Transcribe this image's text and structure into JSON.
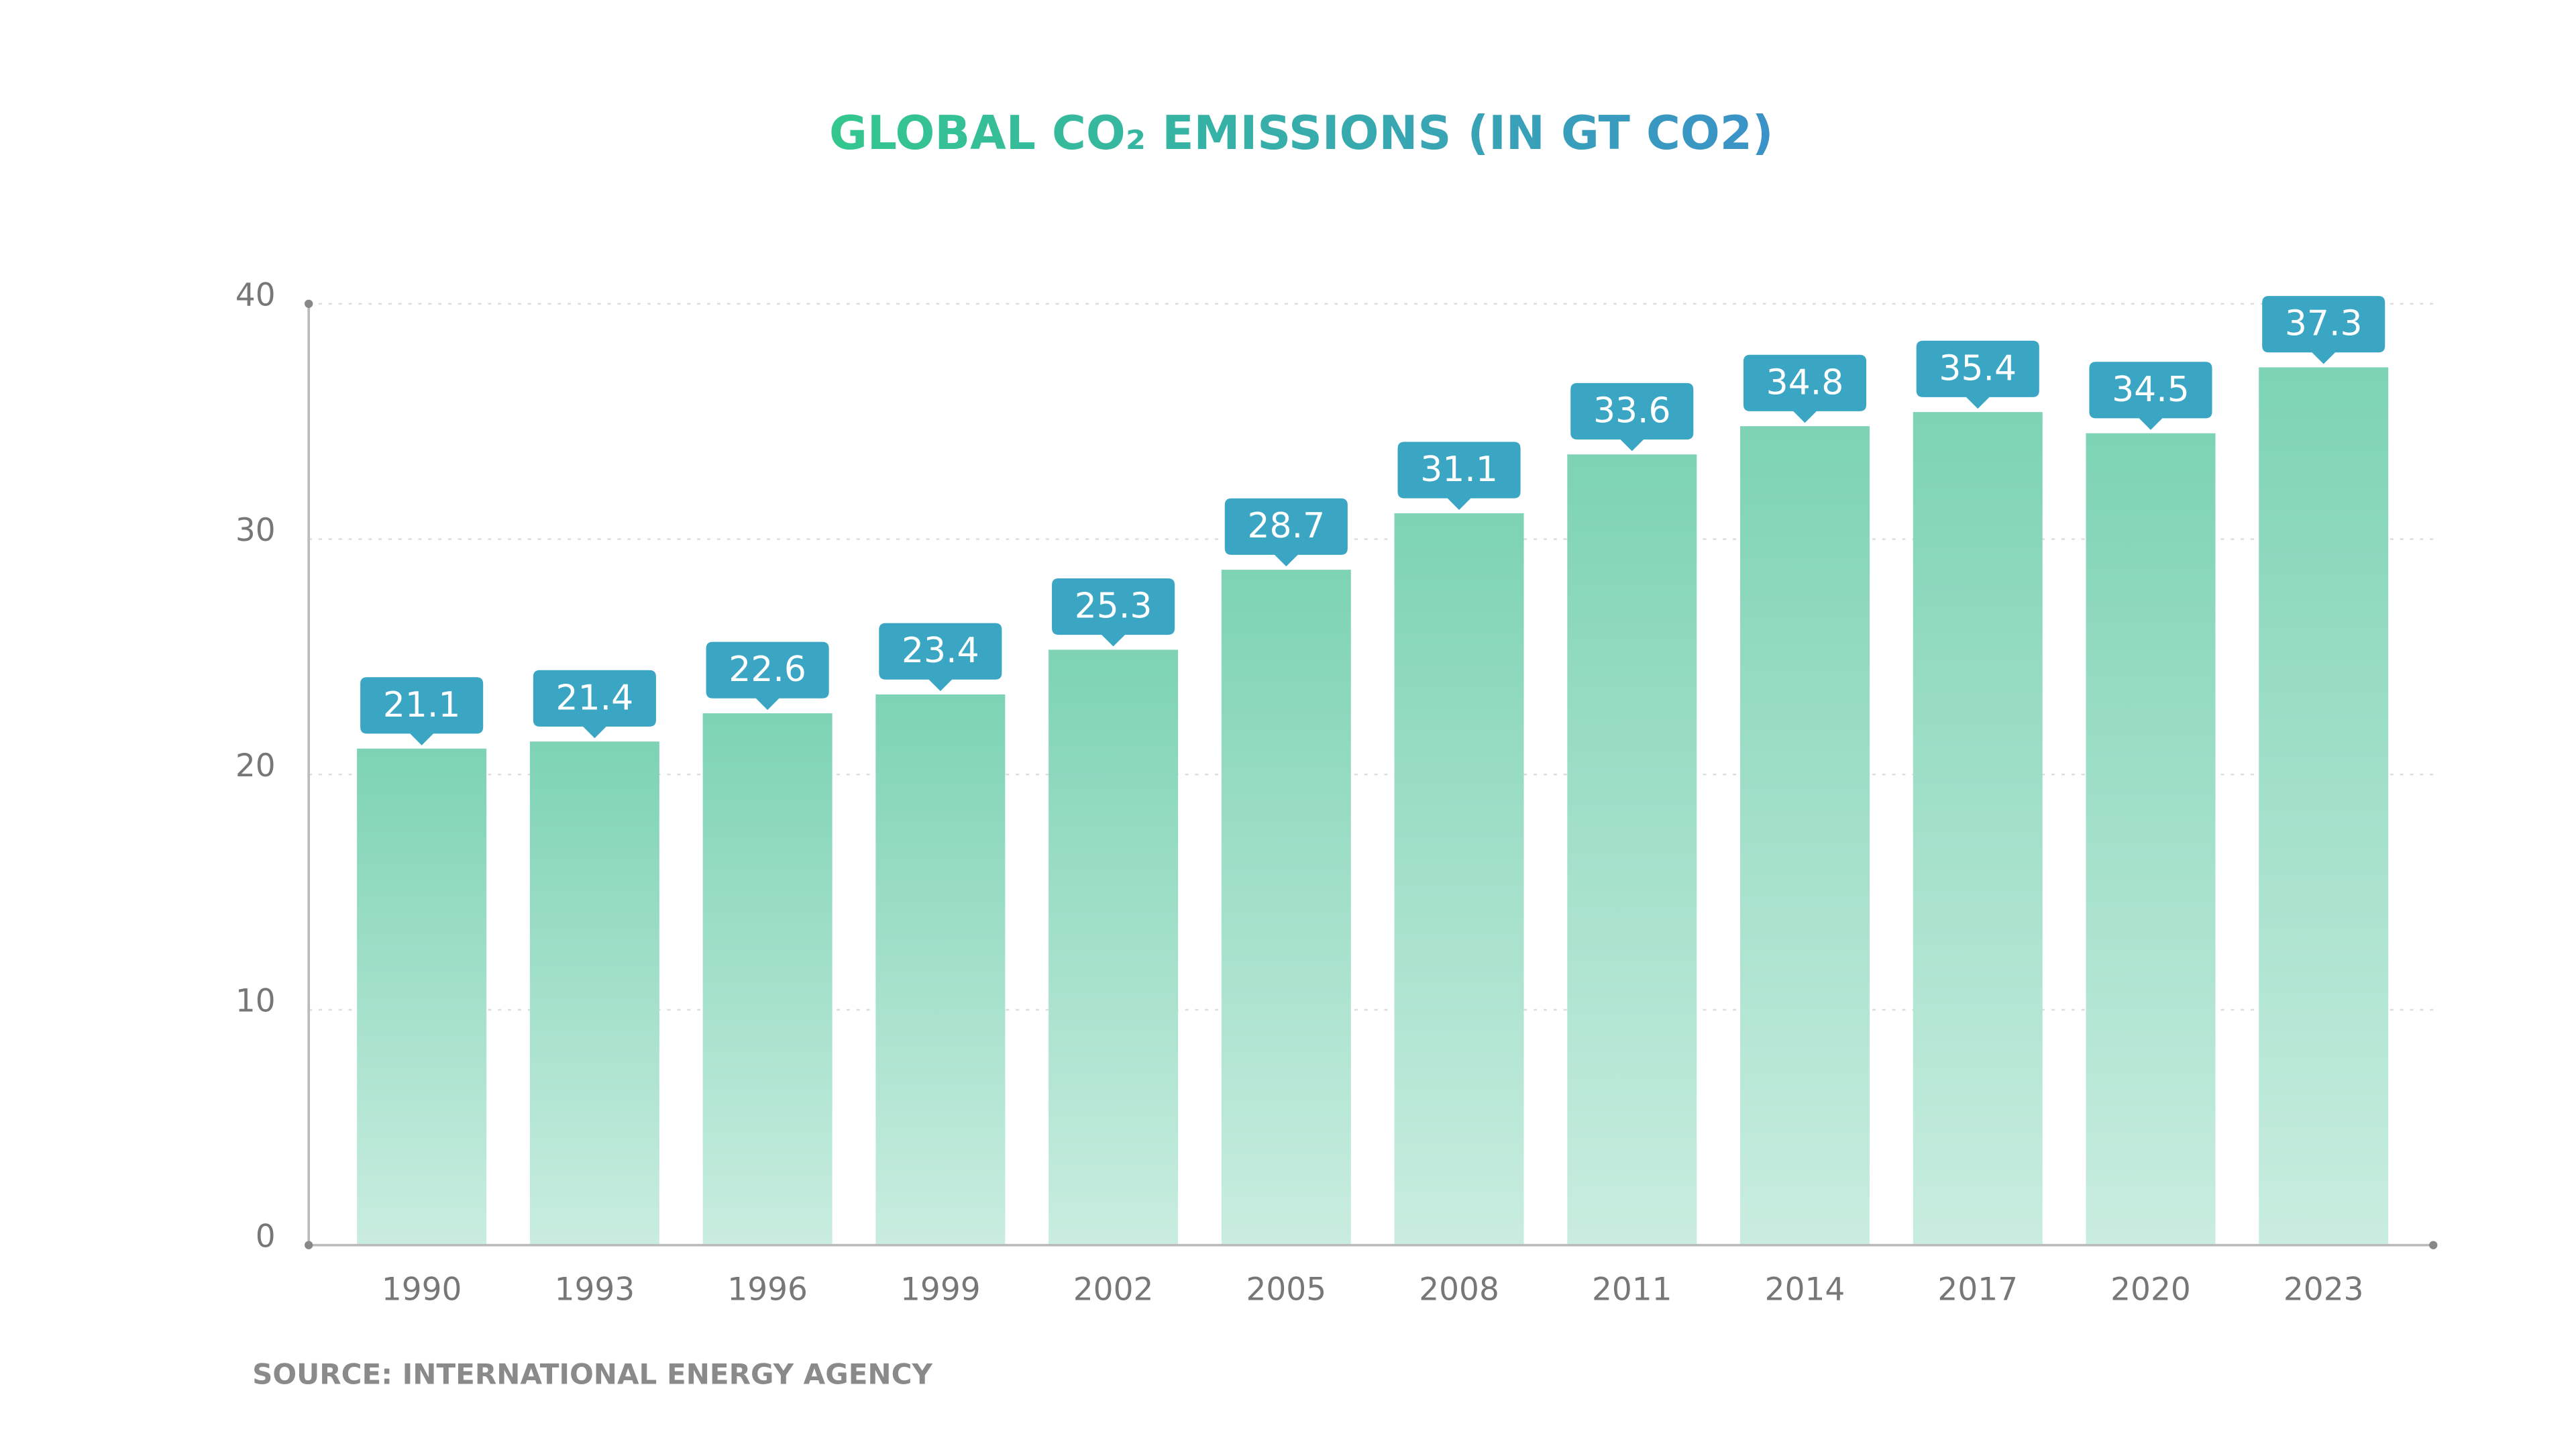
{
  "chart_data": {
    "type": "bar",
    "title": "GLOBAL CO₂ EMISSIONS (IN GT CO2)",
    "source": "SOURCE: INTERNATIONAL ENERGY AGENCY",
    "categories": [
      "1990",
      "1993",
      "1996",
      "1999",
      "2002",
      "2005",
      "2008",
      "2011",
      "2014",
      "2017",
      "2020",
      "2023"
    ],
    "values": [
      21.1,
      21.4,
      22.6,
      23.4,
      25.3,
      28.7,
      31.1,
      33.6,
      34.8,
      35.4,
      34.5,
      37.3
    ],
    "color": "#7dd3b4",
    "label_color": "#3aa6c4",
    "ylim": [
      0,
      40
    ],
    "yticks": [
      0,
      10,
      20,
      30,
      40
    ],
    "grid": true
  }
}
